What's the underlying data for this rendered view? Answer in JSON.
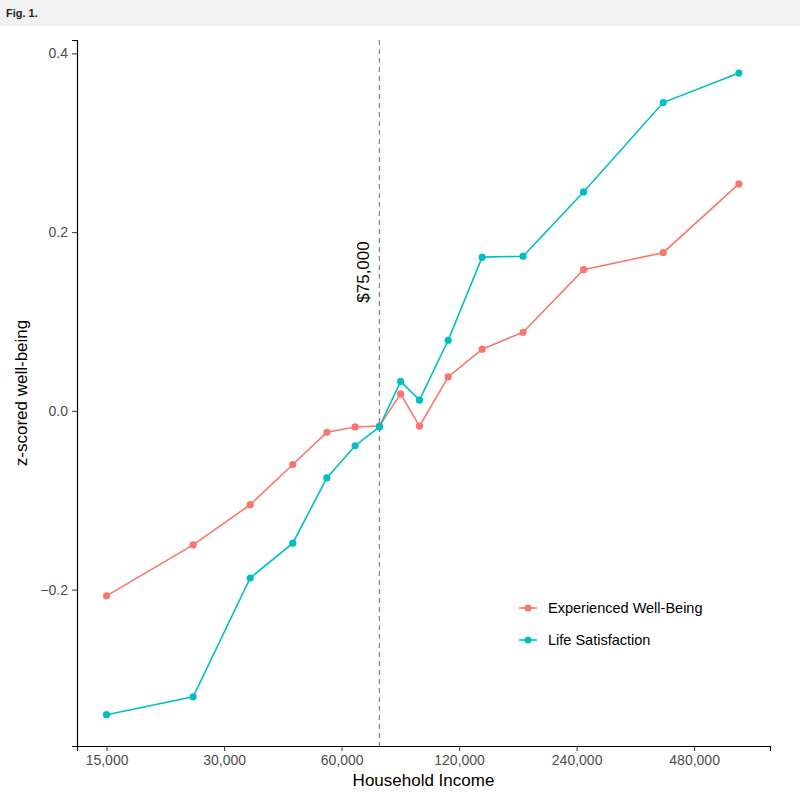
{
  "chart_data": {
    "type": "line",
    "title": "Fig. 1.",
    "x_label": "Household Income",
    "y_label": "z-scored well-being",
    "log": "x",
    "grid": false,
    "legend": "lower-right",
    "x": [
      15000,
      25000,
      35000,
      45000,
      55000,
      65000,
      75000,
      85000,
      95000,
      112500,
      137500,
      175000,
      250000,
      400000,
      625000
    ],
    "series": [
      {
        "name": "Experienced Well-Being",
        "color": "#F8766D",
        "marker": "circle",
        "line_style": "solid",
        "values": [
          -0.207,
          -0.15,
          -0.105,
          -0.06,
          -0.024,
          -0.018,
          -0.017,
          0.019,
          -0.017,
          0.038,
          0.069,
          0.088,
          0.158,
          0.177,
          0.254
        ]
      },
      {
        "name": "Life Satisfaction",
        "color": "#00BFC4",
        "marker": "circle",
        "line_style": "solid",
        "values": [
          -0.34,
          -0.32,
          -0.187,
          -0.148,
          -0.075,
          -0.039,
          -0.018,
          0.033,
          0.012,
          0.079,
          0.172,
          0.173,
          0.245,
          0.345,
          0.378
        ]
      }
    ],
    "xlim": [
      12600,
      751000
    ],
    "xticks": [
      {
        "value": 15000,
        "label": "15,000"
      },
      {
        "value": 30000,
        "label": "30,000"
      },
      {
        "value": 60000,
        "label": "60,000"
      },
      {
        "value": 120000,
        "label": "120,000"
      },
      {
        "value": 240000,
        "label": "240,000"
      },
      {
        "value": 480000,
        "label": "480,000"
      }
    ],
    "ylim": [
      -0.375,
      0.415
    ],
    "yticks": [
      {
        "value": -0.2,
        "label": "−0.2"
      },
      {
        "value": 0,
        "label": "0.0"
      },
      0.2,
      0.4
    ],
    "annotations": [
      {
        "x": 75000,
        "text": "$75,000"
      }
    ]
  }
}
